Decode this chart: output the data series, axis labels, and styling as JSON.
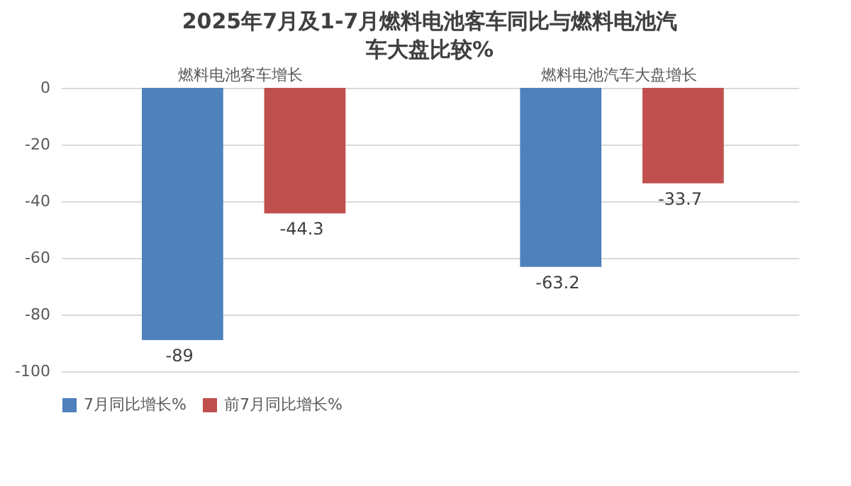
{
  "chart_data": {
    "type": "bar",
    "title": "2025年7月及1-7月燃料电池客车同比与燃料电池汽车大盘比较%",
    "categories": [
      "燃料电池客车增长",
      "燃料电池汽车大盘增长"
    ],
    "series": [
      {
        "name": "7月同比增长%",
        "color": "#4f81bd",
        "values": [
          -89,
          -63.2
        ]
      },
      {
        "name": "前7月同比增长%",
        "color": "#c0504d",
        "values": [
          -44.3,
          -33.7
        ]
      }
    ],
    "ylim": [
      -100,
      0
    ],
    "yticks": [
      0,
      -20,
      -40,
      -60,
      -80,
      -100
    ],
    "grid": "y",
    "legend": "bottom",
    "data_labels": true
  }
}
